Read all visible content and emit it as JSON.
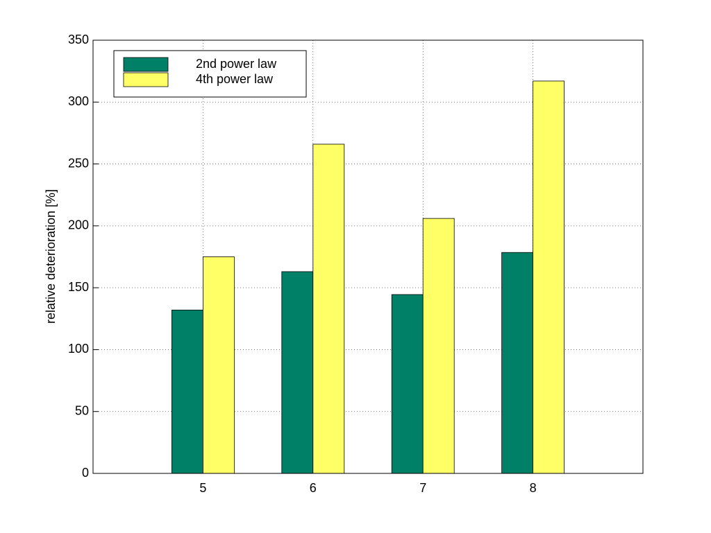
{
  "chart_data": {
    "type": "bar",
    "y_label": "relative deterioration [%]",
    "x": [
      5,
      6,
      7,
      8
    ],
    "series": [
      {
        "name": "2nd power law",
        "color": "#008066",
        "values": [
          132,
          163,
          144.5,
          178.5
        ]
      },
      {
        "name": "4th power law",
        "color": "#ffff66",
        "values": [
          175,
          266,
          206,
          317
        ]
      }
    ],
    "xlim": [
      4,
      9
    ],
    "xticks": [
      5,
      6,
      7,
      8
    ],
    "ylim": [
      0,
      350
    ],
    "yticks": [
      0,
      50,
      100,
      150,
      200,
      250,
      300,
      350
    ],
    "grid": true,
    "legend": "upper left"
  }
}
